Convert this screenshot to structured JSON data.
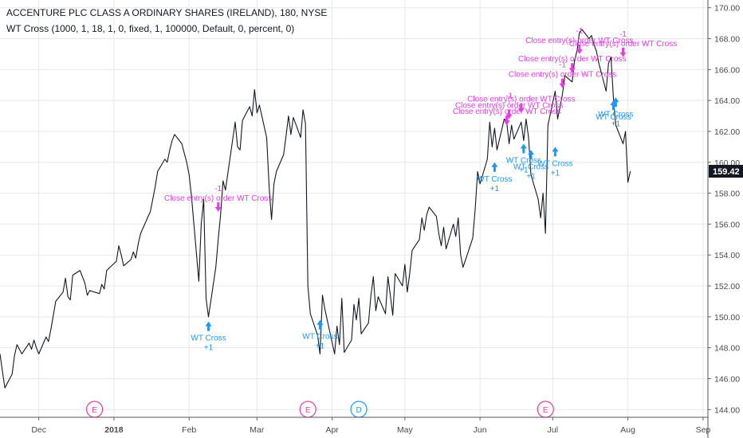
{
  "header": {
    "title": "ACCENTURE PLC CLASS A ORDINARY SHARES (IRELAND), 180, NYSE",
    "indicator": "WT Cross (1000, 1, 18, 1, 0, fixed, 1, 100000, Default, 0, percent, 0)"
  },
  "colors": {
    "price": "#131722",
    "buy": "#2196f3",
    "sell": "#e040e0",
    "earnings": "#e040a0",
    "dividend": "#2196f3",
    "grid": "#e8e8e8"
  },
  "chart_data": {
    "type": "line",
    "ylim": [
      143.5,
      170.5
    ],
    "yticks": [
      "144.00",
      "146.00",
      "148.00",
      "150.00",
      "152.00",
      "154.00",
      "156.00",
      "158.00",
      "160.00",
      "162.00",
      "164.00",
      "166.00",
      "168.00",
      "170.00"
    ],
    "xlim": [
      "2017-11-15",
      "2018-09-03"
    ],
    "xticks": [
      {
        "label": "Dec",
        "date": "2017-12-01"
      },
      {
        "label": "2018",
        "date": "2018-01-01"
      },
      {
        "label": "Feb",
        "date": "2018-02-01"
      },
      {
        "label": "Mar",
        "date": "2018-03-01"
      },
      {
        "label": "Apr",
        "date": "2018-04-01"
      },
      {
        "label": "May",
        "date": "2018-05-01"
      },
      {
        "label": "Jun",
        "date": "2018-06-01"
      },
      {
        "label": "Jul",
        "date": "2018-07-01"
      },
      {
        "label": "Aug",
        "date": "2018-08-01"
      },
      {
        "label": "Sep",
        "date": "2018-09-01"
      }
    ],
    "last_price": "159.42",
    "series": [
      {
        "points": [
          [
            "2017-11-15",
            147.6
          ],
          [
            "2017-11-16",
            146.5
          ],
          [
            "2017-11-17",
            145.4
          ],
          [
            "2017-11-20",
            146.3
          ],
          [
            "2017-11-21",
            147.5
          ],
          [
            "2017-11-22",
            148.2
          ],
          [
            "2017-11-24",
            147.6
          ],
          [
            "2017-11-27",
            148.3
          ],
          [
            "2017-11-28",
            147.9
          ],
          [
            "2017-11-29",
            148.5
          ],
          [
            "2017-11-30",
            148.0
          ],
          [
            "2017-12-01",
            147.6
          ],
          [
            "2017-12-04",
            148.7
          ],
          [
            "2017-12-05",
            148.4
          ],
          [
            "2017-12-06",
            149.2
          ],
          [
            "2017-12-07",
            150.1
          ],
          [
            "2017-12-08",
            151.0
          ],
          [
            "2017-12-11",
            151.6
          ],
          [
            "2017-12-12",
            152.5
          ],
          [
            "2017-12-13",
            151.3
          ],
          [
            "2017-12-14",
            151.1
          ],
          [
            "2017-12-15",
            152.7
          ],
          [
            "2017-12-18",
            153.0
          ],
          [
            "2017-12-19",
            152.6
          ],
          [
            "2017-12-20",
            152.2
          ],
          [
            "2017-12-21",
            151.4
          ],
          [
            "2017-12-22",
            151.7
          ],
          [
            "2017-12-26",
            151.5
          ],
          [
            "2017-12-27",
            152.1
          ],
          [
            "2017-12-28",
            151.8
          ],
          [
            "2017-12-29",
            153.0
          ],
          [
            "2018-01-02",
            153.6
          ],
          [
            "2018-01-03",
            154.6
          ],
          [
            "2018-01-04",
            154.0
          ],
          [
            "2018-01-05",
            153.3
          ],
          [
            "2018-01-08",
            153.7
          ],
          [
            "2018-01-09",
            154.2
          ],
          [
            "2018-01-10",
            153.8
          ],
          [
            "2018-01-11",
            154.7
          ],
          [
            "2018-01-12",
            155.4
          ],
          [
            "2018-01-16",
            156.8
          ],
          [
            "2018-01-17",
            157.6
          ],
          [
            "2018-01-18",
            158.4
          ],
          [
            "2018-01-19",
            159.4
          ],
          [
            "2018-01-22",
            160.2
          ],
          [
            "2018-01-23",
            160.0
          ],
          [
            "2018-01-24",
            160.8
          ],
          [
            "2018-01-25",
            161.4
          ],
          [
            "2018-01-26",
            161.8
          ],
          [
            "2018-01-29",
            161.2
          ],
          [
            "2018-01-30",
            160.6
          ],
          [
            "2018-01-31",
            160.0
          ],
          [
            "2018-02-01",
            159.2
          ],
          [
            "2018-02-02",
            157.8
          ],
          [
            "2018-02-05",
            152.3
          ],
          [
            "2018-02-06",
            156.0
          ],
          [
            "2018-02-07",
            157.6
          ],
          [
            "2018-02-08",
            151.2
          ],
          [
            "2018-02-09",
            150.0
          ],
          [
            "2018-02-12",
            153.2
          ],
          [
            "2018-02-13",
            155.0
          ],
          [
            "2018-02-14",
            156.6
          ],
          [
            "2018-02-15",
            158.8
          ],
          [
            "2018-02-16",
            158.2
          ],
          [
            "2018-02-20",
            162.6
          ],
          [
            "2018-02-21",
            161.0
          ],
          [
            "2018-02-22",
            160.8
          ],
          [
            "2018-02-23",
            162.7
          ],
          [
            "2018-02-26",
            163.6
          ],
          [
            "2018-02-27",
            163.0
          ],
          [
            "2018-02-28",
            164.7
          ],
          [
            "2018-03-01",
            163.2
          ],
          [
            "2018-03-02",
            163.7
          ],
          [
            "2018-03-05",
            161.6
          ],
          [
            "2018-03-06",
            158.4
          ],
          [
            "2018-03-07",
            156.3
          ],
          [
            "2018-03-08",
            158.6
          ],
          [
            "2018-03-09",
            159.4
          ],
          [
            "2018-03-12",
            160.5
          ],
          [
            "2018-03-13",
            161.7
          ],
          [
            "2018-03-14",
            163.0
          ],
          [
            "2018-03-15",
            161.8
          ],
          [
            "2018-03-16",
            162.9
          ],
          [
            "2018-03-19",
            161.6
          ],
          [
            "2018-03-20",
            163.4
          ],
          [
            "2018-03-21",
            162.5
          ],
          [
            "2018-03-22",
            152.0
          ],
          [
            "2018-03-23",
            150.2
          ],
          [
            "2018-03-26",
            148.8
          ],
          [
            "2018-03-27",
            147.6
          ],
          [
            "2018-03-28",
            151.4
          ],
          [
            "2018-03-29",
            150.5
          ],
          [
            "2018-04-02",
            147.6
          ],
          [
            "2018-04-03",
            149.4
          ],
          [
            "2018-04-04",
            148.2
          ],
          [
            "2018-04-05",
            151.2
          ],
          [
            "2018-04-06",
            147.7
          ],
          [
            "2018-04-09",
            148.5
          ],
          [
            "2018-04-10",
            150.8
          ],
          [
            "2018-04-11",
            149.8
          ],
          [
            "2018-04-12",
            151.2
          ],
          [
            "2018-04-13",
            148.9
          ],
          [
            "2018-04-16",
            149.6
          ],
          [
            "2018-04-17",
            151.4
          ],
          [
            "2018-04-18",
            152.6
          ],
          [
            "2018-04-19",
            150.4
          ],
          [
            "2018-04-20",
            151.3
          ],
          [
            "2018-04-23",
            150.2
          ],
          [
            "2018-04-24",
            152.6
          ],
          [
            "2018-04-25",
            151.4
          ],
          [
            "2018-04-26",
            150.1
          ],
          [
            "2018-04-27",
            152.8
          ],
          [
            "2018-04-30",
            152.0
          ],
          [
            "2018-05-01",
            153.4
          ],
          [
            "2018-05-02",
            151.6
          ],
          [
            "2018-05-03",
            152.8
          ],
          [
            "2018-05-04",
            154.3
          ],
          [
            "2018-05-07",
            155.0
          ],
          [
            "2018-05-08",
            156.4
          ],
          [
            "2018-05-09",
            155.6
          ],
          [
            "2018-05-10",
            156.6
          ],
          [
            "2018-05-11",
            157.1
          ],
          [
            "2018-05-14",
            156.5
          ],
          [
            "2018-05-15",
            155.4
          ],
          [
            "2018-05-16",
            154.6
          ],
          [
            "2018-05-17",
            155.8
          ],
          [
            "2018-05-18",
            154.4
          ],
          [
            "2018-05-21",
            156.0
          ],
          [
            "2018-05-22",
            155.2
          ],
          [
            "2018-05-23",
            156.4
          ],
          [
            "2018-05-24",
            154.0
          ],
          [
            "2018-05-25",
            153.2
          ],
          [
            "2018-05-29",
            155.1
          ],
          [
            "2018-05-30",
            157.0
          ],
          [
            "2018-05-31",
            159.4
          ],
          [
            "2018-06-01",
            158.6
          ],
          [
            "2018-06-04",
            160.2
          ],
          [
            "2018-06-05",
            162.6
          ],
          [
            "2018-06-06",
            161.0
          ],
          [
            "2018-06-07",
            162.2
          ],
          [
            "2018-06-08",
            160.8
          ],
          [
            "2018-06-11",
            162.8
          ],
          [
            "2018-06-12",
            162.6
          ],
          [
            "2018-06-13",
            161.2
          ],
          [
            "2018-06-14",
            162.4
          ],
          [
            "2018-06-15",
            161.5
          ],
          [
            "2018-06-18",
            162.6
          ],
          [
            "2018-06-19",
            161.4
          ],
          [
            "2018-06-20",
            162.8
          ],
          [
            "2018-06-21",
            161.6
          ],
          [
            "2018-06-22",
            159.2
          ],
          [
            "2018-06-25",
            157.6
          ],
          [
            "2018-06-26",
            156.4
          ],
          [
            "2018-06-27",
            158.0
          ],
          [
            "2018-06-28",
            155.4
          ],
          [
            "2018-06-29",
            162.4
          ],
          [
            "2018-07-02",
            164.6
          ],
          [
            "2018-07-03",
            162.8
          ],
          [
            "2018-07-05",
            164.4
          ],
          [
            "2018-07-06",
            165.6
          ],
          [
            "2018-07-09",
            165.2
          ],
          [
            "2018-07-10",
            166.6
          ],
          [
            "2018-07-11",
            167.2
          ],
          [
            "2018-07-12",
            168.4
          ],
          [
            "2018-07-13",
            168.6
          ],
          [
            "2018-07-16",
            168.0
          ],
          [
            "2018-07-17",
            168.2
          ],
          [
            "2018-07-18",
            167.6
          ],
          [
            "2018-07-19",
            167.2
          ],
          [
            "2018-07-20",
            166.4
          ],
          [
            "2018-07-23",
            164.6
          ],
          [
            "2018-07-24",
            166.4
          ],
          [
            "2018-07-25",
            166.8
          ],
          [
            "2018-07-26",
            164.2
          ],
          [
            "2018-07-27",
            162.4
          ],
          [
            "2018-07-30",
            161.2
          ],
          [
            "2018-07-31",
            162.0
          ],
          [
            "2018-08-01",
            158.7
          ],
          [
            "2018-08-02",
            159.42
          ]
        ]
      }
    ],
    "signals_buy": [
      {
        "date": "2018-02-09",
        "arrow_price": 149.7,
        "text": "WT Cross",
        "qty": "+1"
      },
      {
        "date": "2018-03-27",
        "arrow_price": 149.8,
        "text": "WT Cross",
        "qty": "+1"
      },
      {
        "date": "2018-06-07",
        "arrow_price": 160.0,
        "text": "WT Cross",
        "qty": "+1"
      },
      {
        "date": "2018-06-19",
        "arrow_price": 161.2,
        "text": "WT Cross",
        "qty": "+1"
      },
      {
        "date": "2018-06-22",
        "arrow_price": 160.8,
        "text": "WT Cross",
        "qty": "+1"
      },
      {
        "date": "2018-07-02",
        "arrow_price": 161.0,
        "text": "WT Cross",
        "qty": "+1"
      },
      {
        "date": "2018-07-27",
        "arrow_price": 164.2,
        "text": "WT Cross",
        "qty": "+1"
      },
      {
        "date": "2018-07-26",
        "arrow_price": 164.0,
        "text": "WT Cross",
        "qty": ""
      }
    ],
    "signals_sell": [
      {
        "date": "2018-02-13",
        "arrow_price": 156.8,
        "text": "Close entry(s) order WT Cross",
        "qty": "-1"
      },
      {
        "date": "2018-06-12",
        "arrow_price": 162.4,
        "text": "Close entry(s) order WT Cross",
        "qty": ""
      },
      {
        "date": "2018-06-13",
        "arrow_price": 162.8,
        "text": "Close entry(s) order WT Cross",
        "qty": "-1"
      },
      {
        "date": "2018-06-18",
        "arrow_price": 163.2,
        "text": "Close entry(s) order WT Cross",
        "qty": ""
      },
      {
        "date": "2018-07-05",
        "arrow_price": 164.8,
        "text": "Close entry(s) order WT Cross",
        "qty": "-1"
      },
      {
        "date": "2018-07-09",
        "arrow_price": 165.8,
        "text": "Close entry(s) order WT Cross",
        "qty": ""
      },
      {
        "date": "2018-07-12",
        "arrow_price": 167.0,
        "text": "Close entry(s) order WT Cross",
        "qty": "-1"
      },
      {
        "date": "2018-07-30",
        "arrow_price": 166.8,
        "text": "Close entry(s) order WT Cross",
        "qty": "-1"
      }
    ],
    "events": [
      {
        "date": "2017-12-24",
        "label": "E",
        "kind": "earnings"
      },
      {
        "date": "2018-03-22",
        "label": "E",
        "kind": "earnings"
      },
      {
        "date": "2018-04-12",
        "label": "D",
        "kind": "dividend"
      },
      {
        "date": "2018-06-28",
        "label": "E",
        "kind": "earnings"
      }
    ]
  }
}
